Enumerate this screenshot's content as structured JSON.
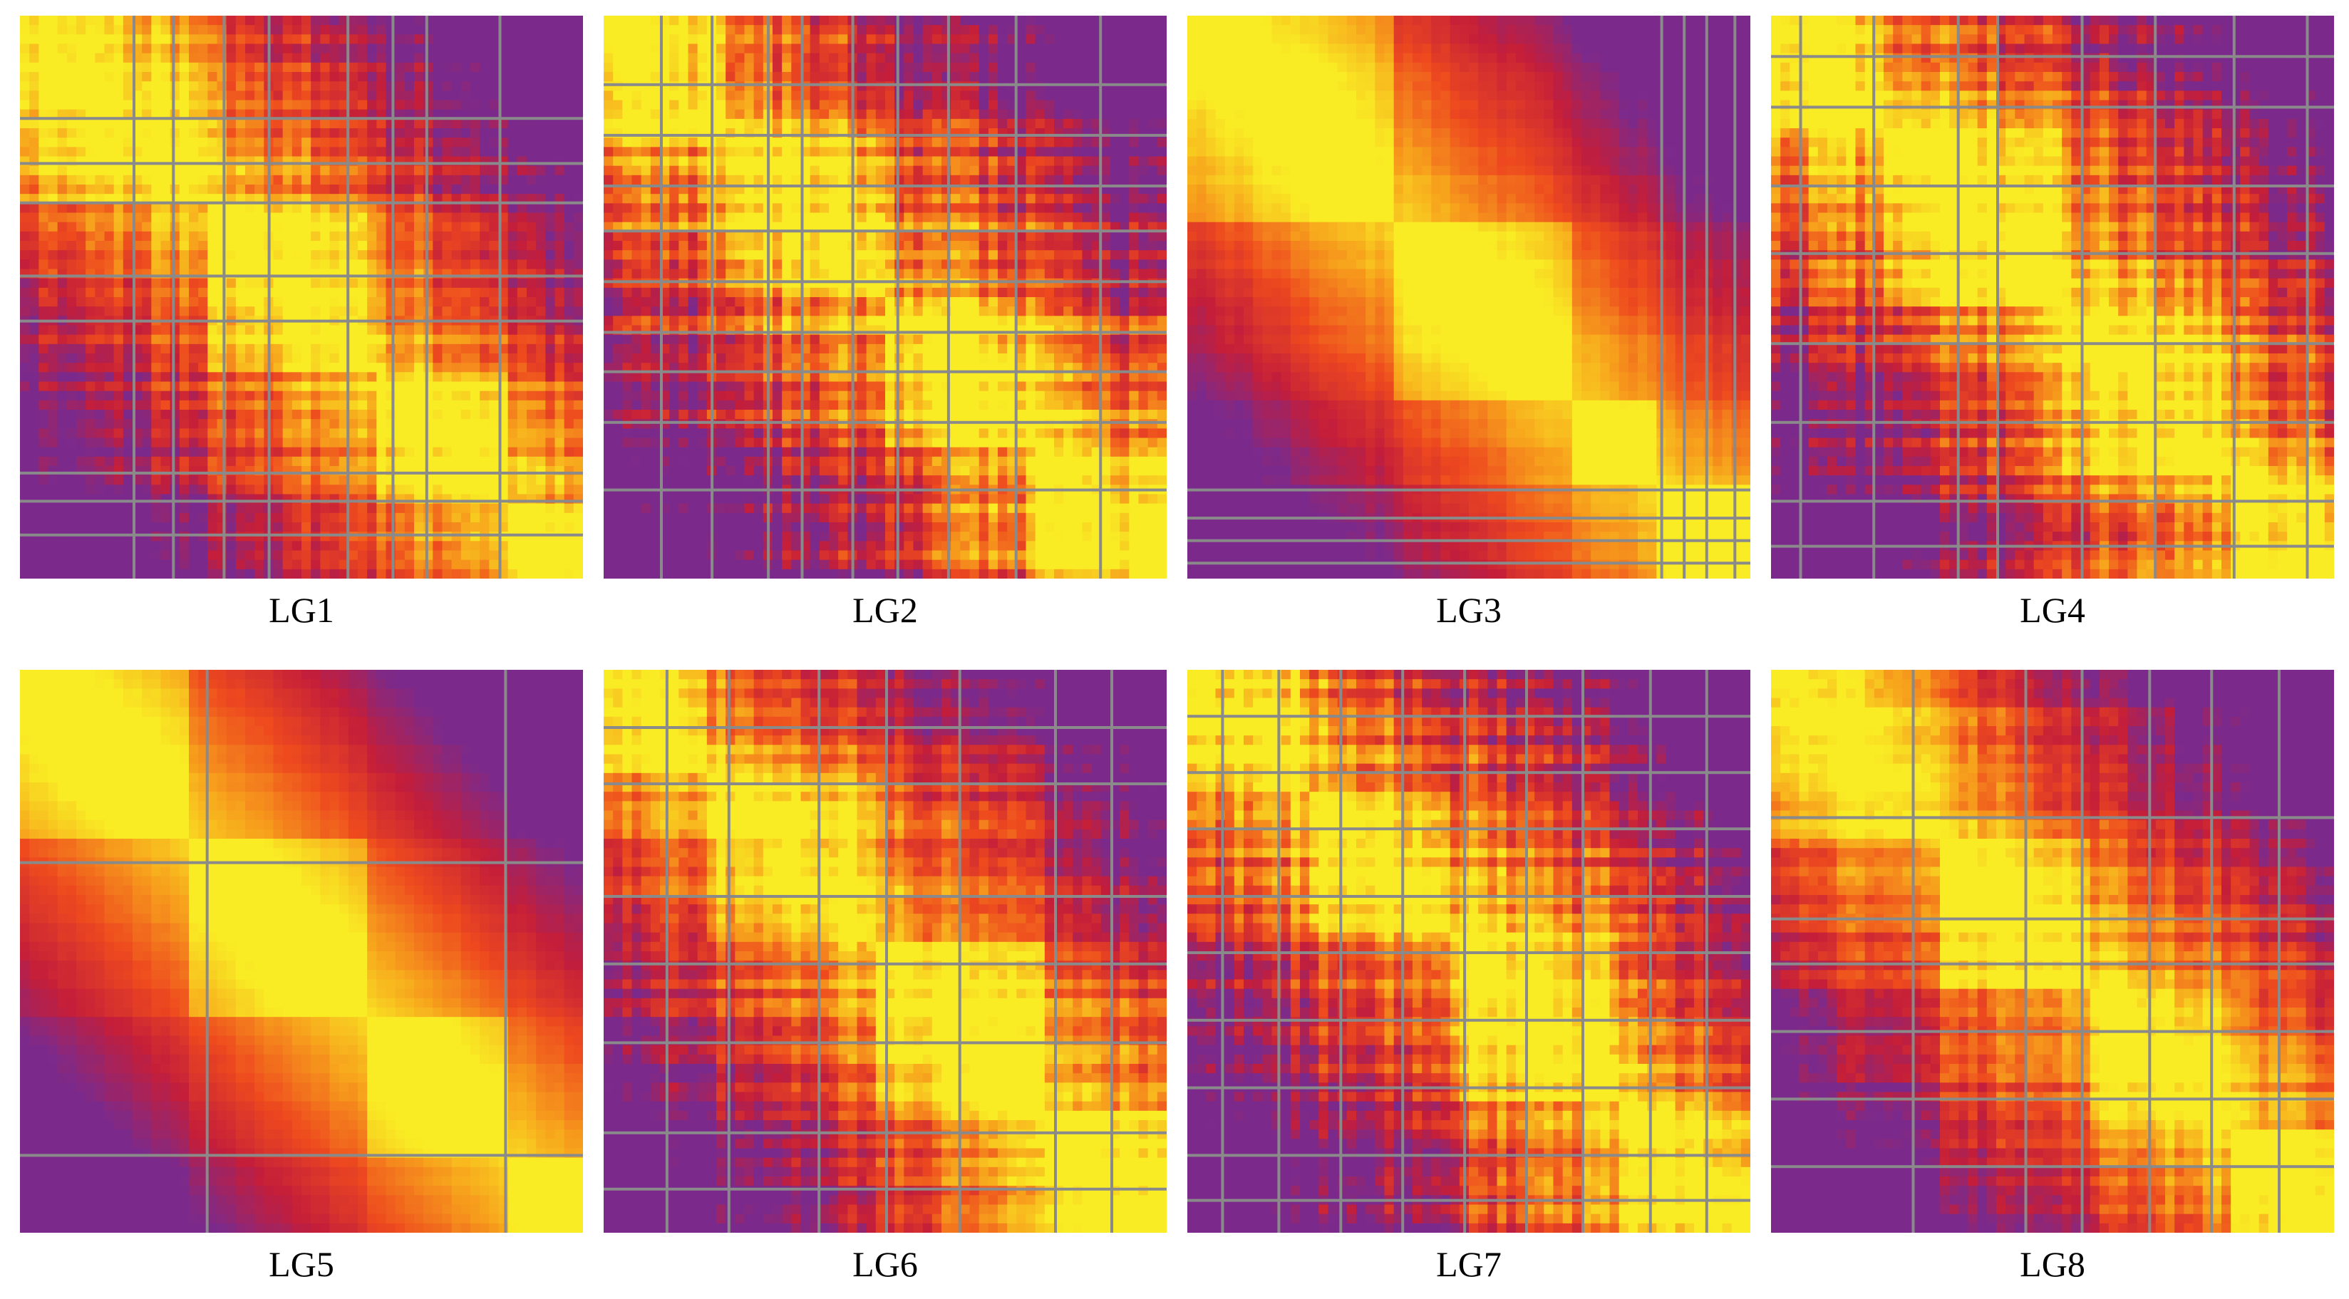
{
  "chart_data": [
    {
      "type": "heatmap",
      "label": "LG1",
      "blocks": [
        0.34,
        0.3,
        0.22,
        0.14
      ],
      "noise": 0.55,
      "rowGaps": [
        0.18,
        0.26,
        0.33,
        0.46,
        0.54,
        0.81,
        0.86,
        0.92
      ],
      "colGaps": [
        0.2,
        0.27,
        0.36,
        0.44,
        0.58,
        0.66,
        0.72,
        0.85
      ],
      "seed": 11
    },
    {
      "type": "heatmap",
      "label": "LG2",
      "blocks": [
        0.22,
        0.28,
        0.26,
        0.24
      ],
      "noise": 0.75,
      "rowGaps": [
        0.12,
        0.21,
        0.3,
        0.38,
        0.47,
        0.56,
        0.63,
        0.72,
        0.84
      ],
      "colGaps": [
        0.1,
        0.19,
        0.29,
        0.35,
        0.44,
        0.52,
        0.61,
        0.73,
        0.88
      ],
      "seed": 23
    },
    {
      "type": "heatmap",
      "label": "LG3",
      "blocks": [
        0.36,
        0.32,
        0.16,
        0.16
      ],
      "noise": 0.15,
      "rowGaps": [
        0.84,
        0.89,
        0.93,
        0.97
      ],
      "colGaps": [
        0.84,
        0.88,
        0.92,
        0.97
      ],
      "seed": 37
    },
    {
      "type": "heatmap",
      "label": "LG4",
      "blocks": [
        0.2,
        0.32,
        0.3,
        0.18
      ],
      "noise": 0.7,
      "rowGaps": [
        0.07,
        0.16,
        0.3,
        0.42,
        0.58,
        0.72,
        0.86,
        0.94
      ],
      "colGaps": [
        0.05,
        0.18,
        0.33,
        0.4,
        0.55,
        0.68,
        0.82,
        0.95
      ],
      "seed": 41
    },
    {
      "type": "heatmap",
      "label": "LG5",
      "blocks": [
        0.3,
        0.32,
        0.24,
        0.14
      ],
      "noise": 0.08,
      "rowGaps": [
        0.34,
        0.86
      ],
      "colGaps": [
        0.33,
        0.86
      ],
      "seed": 53
    },
    {
      "type": "heatmap",
      "label": "LG6",
      "blocks": [
        0.18,
        0.3,
        0.3,
        0.22
      ],
      "noise": 0.55,
      "rowGaps": [
        0.1,
        0.2,
        0.4,
        0.52,
        0.66,
        0.82,
        0.92
      ],
      "colGaps": [
        0.11,
        0.22,
        0.38,
        0.5,
        0.63,
        0.8,
        0.9
      ],
      "seed": 67
    },
    {
      "type": "heatmap",
      "label": "LG7",
      "blocks": [
        0.22,
        0.24,
        0.3,
        0.24
      ],
      "noise": 0.7,
      "rowGaps": [
        0.08,
        0.18,
        0.28,
        0.4,
        0.5,
        0.62,
        0.74,
        0.86,
        0.94
      ],
      "colGaps": [
        0.06,
        0.16,
        0.27,
        0.38,
        0.49,
        0.6,
        0.7,
        0.82,
        0.92
      ],
      "seed": 79
    },
    {
      "type": "heatmap",
      "label": "LG8",
      "blocks": [
        0.3,
        0.26,
        0.26,
        0.18
      ],
      "noise": 0.45,
      "rowGaps": [
        0.26,
        0.44,
        0.52,
        0.64,
        0.76,
        0.88
      ],
      "colGaps": [
        0.25,
        0.45,
        0.55,
        0.67,
        0.78,
        0.9
      ],
      "seed": 97
    }
  ],
  "colors": {
    "high": "#f9ec24",
    "mid_high": "#f7a21c",
    "mid": "#ee4a1e",
    "low": "#c41e3a",
    "lowest": "#7b2a8c",
    "missing": "#8a8a8a",
    "background": "#ffffff",
    "caption": "#000000"
  }
}
